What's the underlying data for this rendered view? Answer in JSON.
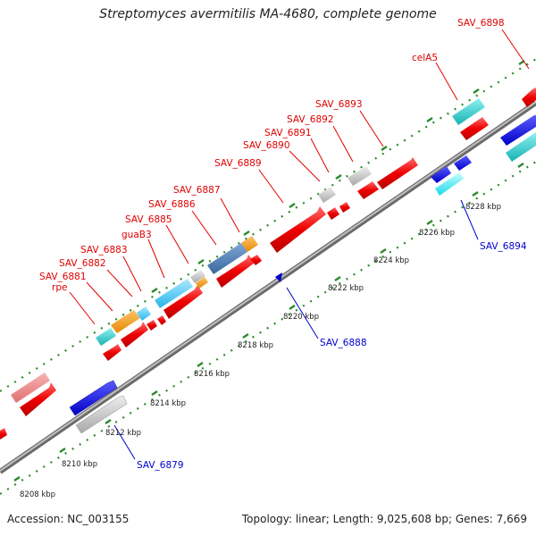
{
  "title": "Streptomyces avermitilis MA-4680, complete genome",
  "footer": {
    "accession": "Accession: NC_003155",
    "summary": "Topology: linear; Length: 9,025,608 bp; Genes: 7,669"
  },
  "colors": {
    "forward_label": "#e00000",
    "reverse_label": "#0000cc",
    "backbone": "#8c8c8c",
    "scale_ticks": "#2a8a2a"
  },
  "scale_labels": [
    "8208 kbp",
    "8210 kbp",
    "8212 kbp",
    "8214 kbp",
    "8216 kbp",
    "8218 kbp",
    "8220 kbp",
    "8222 kbp",
    "8224 kbp",
    "8226 kbp",
    "8228 kbp"
  ],
  "forward_labels": [
    "rpe",
    "SAV_6881",
    "SAV_6882",
    "SAV_6883",
    "guaB3",
    "SAV_6885",
    "SAV_6886",
    "SAV_6887",
    "SAV_6889",
    "SAV_6890",
    "SAV_6891",
    "SAV_6892",
    "SAV_6893",
    "celA5",
    "SAV_6898"
  ],
  "reverse_labels": [
    "SAV_6879",
    "SAV_6888",
    "SAV_6894"
  ],
  "gene_colors": [
    "red",
    "light-red",
    "cyan",
    "orange",
    "sky-blue",
    "steel-blue",
    "gray",
    "blue"
  ]
}
